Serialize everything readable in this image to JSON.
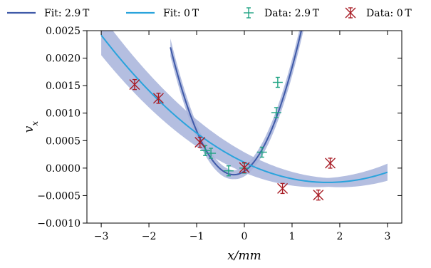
{
  "chart_data": {
    "type": "scatter",
    "xlabel": "x/mm",
    "ylabel": "v",
    "ylabel_subscript": "x",
    "xlim": [
      -3.3,
      3.3
    ],
    "ylim": [
      -0.001,
      0.0025
    ],
    "xticks": [
      -3,
      -2,
      -1,
      0,
      1,
      2,
      3
    ],
    "yticks": [
      -0.001,
      -0.0005,
      0.0,
      0.0005,
      0.001,
      0.0015,
      0.002,
      0.0025
    ],
    "xtick_labels": [
      "−3",
      "−2",
      "−1",
      "0",
      "1",
      "2",
      "3"
    ],
    "ytick_labels": [
      "−0.0010",
      "−0.0005",
      "0.0000",
      "0.0005",
      "0.0010",
      "0.0015",
      "0.0020",
      "0.0025"
    ],
    "grid": false,
    "legend_position": "top",
    "colors": {
      "fit_29T": "#3f5aa8",
      "fit_0T": "#29a3dc",
      "band": "#a7b3db",
      "data_29T": "#1fa383",
      "data_0T": "#a81c25"
    },
    "series": [
      {
        "name": "Fit: 2.9 T",
        "kind": "fit",
        "x_range": [
          -1.55,
          1.55
        ],
        "quadratic": {
          "a": 0.00131,
          "x0": -0.22,
          "c": -0.00012
        },
        "band_halfwidth": {
          "base": 8e-05,
          "slope": 6e-05
        }
      },
      {
        "name": "Fit: 0 T",
        "kind": "fit",
        "x_range": [
          -3,
          3
        ],
        "quadratic": {
          "a": 0.0001187,
          "x0": 1.75,
          "c": -0.00026
        },
        "band_halfwidth": {
          "base": 8e-05,
          "slope": 6e-05
        }
      },
      {
        "name": "Data: 2.9 T",
        "kind": "data",
        "marker": "plus",
        "points": [
          {
            "x": -0.82,
            "y": 0.00032,
            "yerr": 2e-05
          },
          {
            "x": -0.7,
            "y": 0.00027,
            "yerr": 2e-05
          },
          {
            "x": -0.33,
            "y": -5e-05,
            "yerr": 2e-05
          },
          {
            "x": 0.0,
            "y": 0.0,
            "yerr": 2e-05
          },
          {
            "x": 0.37,
            "y": 0.00029,
            "yerr": 2e-05
          },
          {
            "x": 0.67,
            "y": 0.00101,
            "yerr": 2e-05
          },
          {
            "x": 0.7,
            "y": 0.00156,
            "yerr": 2e-05
          }
        ]
      },
      {
        "name": "Data: 0 T",
        "kind": "data",
        "marker": "x",
        "points": [
          {
            "x": -2.3,
            "y": 0.00152,
            "yerr": 2e-05
          },
          {
            "x": -1.8,
            "y": 0.00127,
            "yerr": 2e-05
          },
          {
            "x": -0.93,
            "y": 0.00047,
            "yerr": 2e-05
          },
          {
            "x": 0.0,
            "y": 1e-05,
            "yerr": 2e-05
          },
          {
            "x": 0.8,
            "y": -0.00037,
            "yerr": 2e-05
          },
          {
            "x": 1.55,
            "y": -0.00049,
            "yerr": 2e-05
          },
          {
            "x": 1.8,
            "y": 9e-05,
            "yerr": 2e-05
          }
        ]
      }
    ]
  }
}
